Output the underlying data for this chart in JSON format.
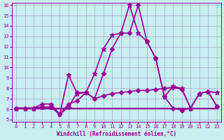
{
  "xlabel": "Windchill (Refroidissement éolien,°C)",
  "background_color": "#c8eef0",
  "grid_color": "#aaaacc",
  "line_color": "#990099",
  "ylim": [
    5,
    16
  ],
  "xlim": [
    0,
    23
  ],
  "yticks": [
    5,
    6,
    7,
    8,
    9,
    10,
    11,
    12,
    13,
    14,
    15,
    16
  ],
  "xticks": [
    0,
    1,
    2,
    3,
    4,
    5,
    6,
    7,
    8,
    9,
    10,
    11,
    12,
    13,
    14,
    15,
    16,
    17,
    18,
    19,
    20,
    21,
    22,
    23
  ],
  "series": [
    {
      "x": [
        0,
        1,
        2,
        3,
        4,
        5,
        6,
        7,
        8,
        9,
        10,
        11,
        12,
        13,
        14,
        15,
        16,
        17,
        18,
        19,
        20,
        21,
        22,
        23
      ],
      "y": [
        6.1,
        6.1,
        6.1,
        6.2,
        6.2,
        5.5,
        6.5,
        6.8,
        7.6,
        7.0,
        7.3,
        7.5,
        7.6,
        7.7,
        7.8,
        7.8,
        7.9,
        8.0,
        8.1,
        7.9,
        6.1,
        7.5,
        7.7,
        6.3
      ],
      "marker": "D",
      "markersize": 3,
      "linewidth": 1.2
    },
    {
      "x": [
        0,
        1,
        2,
        3,
        4,
        5,
        6,
        7,
        8,
        9,
        10,
        11,
        12,
        13,
        14,
        15,
        16,
        17,
        18,
        19,
        20,
        21,
        22,
        23
      ],
      "y": [
        6.1,
        6.1,
        6.1,
        6.2,
        6.2,
        5.5,
        9.3,
        7.5,
        7.6,
        9.4,
        11.8,
        13.1,
        13.3,
        16.0,
        13.3,
        12.5,
        10.9,
        7.2,
        8.2,
        8.0,
        6.1,
        7.5,
        7.7,
        7.6
      ],
      "marker": "*",
      "markersize": 5,
      "linewidth": 1.2
    },
    {
      "x": [
        0,
        1,
        2,
        3,
        4,
        5,
        6,
        7,
        8,
        9,
        10,
        11,
        12,
        13,
        14,
        15,
        16,
        17,
        18,
        19,
        20,
        21,
        22,
        23
      ],
      "y": [
        6.1,
        6.1,
        6.1,
        6.1,
        6.1,
        6.1,
        6.1,
        6.1,
        6.1,
        6.1,
        6.1,
        6.1,
        6.1,
        6.1,
        6.1,
        6.1,
        6.1,
        6.1,
        6.1,
        6.1,
        6.1,
        6.1,
        6.1,
        6.1
      ],
      "marker": null,
      "markersize": 0,
      "linewidth": 1.5
    },
    {
      "x": [
        0,
        1,
        2,
        3,
        4,
        5,
        6,
        7,
        8,
        9,
        10,
        11,
        12,
        13,
        14,
        15,
        16,
        17,
        18,
        19,
        20,
        21,
        22,
        23
      ],
      "y": [
        6.1,
        6.1,
        6.1,
        6.5,
        6.5,
        5.5,
        6.2,
        7.6,
        7.6,
        7.0,
        9.4,
        11.8,
        13.3,
        13.3,
        16.0,
        12.5,
        10.9,
        7.2,
        6.1,
        5.9,
        6.1,
        7.5,
        7.7,
        6.3
      ],
      "marker": "D",
      "markersize": 3,
      "linewidth": 1.2
    }
  ]
}
